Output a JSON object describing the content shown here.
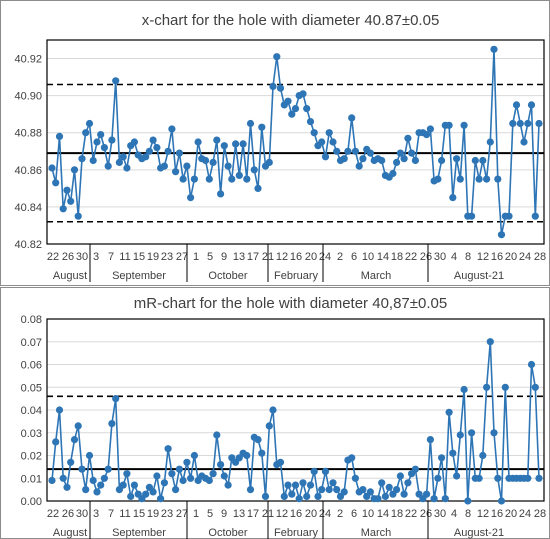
{
  "charts": [
    {
      "id": "x",
      "type": "line",
      "title": "x-chart for the hole with diameter 40.87±0.05",
      "ylim": [
        40.82,
        40.93
      ],
      "yticks": [
        "40.82",
        "40.84",
        "40.86",
        "40.88",
        "40.90",
        "40.92"
      ],
      "yticks_num": [
        40.82,
        40.84,
        40.86,
        40.88,
        40.9,
        40.92
      ],
      "center_line": 40.869,
      "ucl": 40.906,
      "lcl": 40.832,
      "values": [
        40.861,
        40.853,
        40.878,
        40.839,
        40.849,
        40.843,
        40.86,
        40.835,
        40.866,
        40.88,
        40.885,
        40.865,
        40.875,
        40.879,
        40.872,
        40.862,
        40.876,
        40.908,
        40.864,
        40.867,
        40.861,
        40.873,
        40.875,
        40.868,
        40.866,
        40.867,
        40.87,
        40.876,
        40.872,
        40.861,
        40.862,
        40.87,
        40.882,
        40.859,
        40.869,
        40.855,
        40.862,
        40.845,
        40.855,
        40.875,
        40.866,
        40.865,
        40.855,
        40.864,
        40.876,
        40.847,
        40.873,
        40.862,
        40.855,
        40.874,
        40.857,
        40.874,
        40.855,
        40.885,
        40.86,
        40.85,
        40.883,
        40.862,
        40.864,
        40.905,
        40.921,
        40.904,
        40.895,
        40.897,
        40.89,
        40.893,
        40.9,
        40.901,
        40.893,
        40.886,
        40.88,
        40.873,
        40.875,
        40.867,
        40.88,
        40.875,
        40.87,
        40.865,
        40.866,
        40.87,
        40.888,
        40.87,
        40.862,
        40.866,
        40.871,
        40.869,
        40.865,
        40.866,
        40.865,
        40.857,
        40.856,
        40.858,
        40.864,
        40.869,
        40.866,
        40.877,
        40.869,
        40.865,
        40.88,
        40.88,
        40.879,
        40.882,
        40.854,
        40.855,
        40.865,
        40.884,
        40.884,
        40.845,
        40.866,
        40.855,
        40.884,
        40.835,
        40.835,
        40.865,
        40.855,
        40.865,
        40.855,
        40.875,
        40.925,
        40.855,
        40.825,
        40.835,
        40.835,
        40.885,
        40.895,
        40.885,
        40.875,
        40.885,
        40.895,
        40.835,
        40.885
      ]
    },
    {
      "id": "mr",
      "type": "line",
      "title": "mR-chart for the hole with diameter 40,87±0.05",
      "ylim": [
        0,
        0.08
      ],
      "yticks": [
        "0.00",
        "0.01",
        "0.02",
        "0.03",
        "0.04",
        "0.05",
        "0.06",
        "0.07",
        "0.08"
      ],
      "yticks_num": [
        0,
        0.01,
        0.02,
        0.03,
        0.04,
        0.05,
        0.06,
        0.07,
        0.08
      ],
      "center_line": 0.014,
      "ucl": 0.046,
      "values": [
        0.009,
        0.026,
        0.04,
        0.01,
        0.006,
        0.017,
        0.027,
        0.033,
        0.014,
        0.005,
        0.02,
        0.009,
        0.004,
        0.007,
        0.01,
        0.014,
        0.034,
        0.045,
        0.005,
        0.007,
        0.012,
        0.002,
        0.007,
        0.003,
        0.001,
        0.003,
        0.006,
        0.004,
        0.011,
        0.001,
        0.008,
        0.023,
        0.012,
        0.005,
        0.014,
        0.009,
        0.017,
        0.01,
        0.02,
        0.009,
        0.011,
        0.01,
        0.009,
        0.012,
        0.029,
        0.016,
        0.011,
        0.007,
        0.019,
        0.017,
        0.019,
        0.021,
        0.02,
        0.005,
        0.028,
        0.027,
        0.021,
        0.002,
        0.033,
        0.04,
        0.016,
        0.017,
        0.002,
        0.007,
        0.003,
        0.007,
        0.001,
        0.008,
        0.002,
        0.007,
        0.013,
        0.002,
        0.005,
        0.013,
        0.005,
        0.008,
        0.005,
        0.002,
        0.004,
        0.018,
        0.019,
        0.01,
        0.004,
        0.005,
        0.002,
        0.004,
        0.001,
        0.001,
        0.008,
        0.002,
        0.006,
        0.003,
        0.005,
        0.011,
        0.003,
        0.008,
        0.012,
        0.014,
        0.003,
        0.001,
        0.003,
        0.027,
        0.001,
        0.01,
        0.019,
        0.001,
        0.039,
        0.021,
        0.011,
        0.029,
        0.049,
        0.0,
        0.03,
        0.01,
        0.01,
        0.02,
        0.05,
        0.07,
        0.03,
        0.01,
        0.0,
        0.05,
        0.01,
        0.01,
        0.01,
        0.01,
        0.01,
        0.01,
        0.06,
        0.05,
        0.01
      ]
    }
  ],
  "x_day_labels": [
    "22",
    "26",
    "30",
    "3",
    "7",
    "11",
    "15",
    "19",
    "23",
    "27",
    "1",
    "5",
    "9",
    "13",
    "17",
    "21",
    "12",
    "16",
    "20",
    "24",
    "2",
    "6",
    "10",
    "14",
    "18",
    "22",
    "26",
    "30",
    "4",
    "8",
    "12",
    "16",
    "20",
    "24",
    "28"
  ],
  "x_month_labels": [
    "August",
    "September",
    "October",
    "February",
    "March",
    "August-21"
  ],
  "colors": {
    "series": "#2e75b6",
    "limits": "#000000"
  }
}
